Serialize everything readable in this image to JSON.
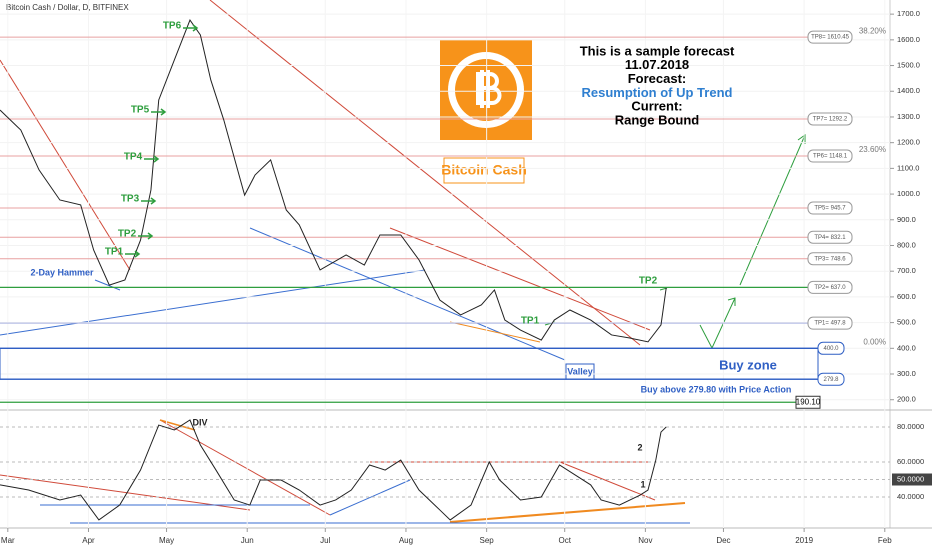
{
  "chart_data": [
    {
      "type": "line",
      "title": "Bitcoin Cash / Dollar, D, BITFINEX",
      "xlim": [
        -3,
        339
      ],
      "xticks": [
        {
          "value": 0,
          "label": "Mar"
        },
        {
          "value": 31,
          "label": "Apr"
        },
        {
          "value": 61,
          "label": "May"
        },
        {
          "value": 92,
          "label": "Jun"
        },
        {
          "value": 122,
          "label": "Jul"
        },
        {
          "value": 153,
          "label": "Aug"
        },
        {
          "value": 184,
          "label": "Sep"
        },
        {
          "value": 214,
          "label": "Oct"
        },
        {
          "value": 245,
          "label": "Nov"
        },
        {
          "value": 275,
          "label": "Dec"
        },
        {
          "value": 306,
          "label": "2019"
        },
        {
          "value": 337,
          "label": "Feb"
        }
      ],
      "ylim": [
        160,
        1755
      ],
      "yticks": [
        {
          "value": 200,
          "label": "200.0"
        },
        {
          "value": 300,
          "label": "300.0"
        },
        {
          "value": 400,
          "label": "400.0"
        },
        {
          "value": 500,
          "label": "500.0"
        },
        {
          "value": 600,
          "label": "600.0"
        },
        {
          "value": 700,
          "label": "700.0"
        },
        {
          "value": 800,
          "label": "800.0"
        },
        {
          "value": 900,
          "label": "900.0"
        },
        {
          "value": 1000,
          "label": "1000.0"
        },
        {
          "value": 1100,
          "label": "1100.0"
        },
        {
          "value": 1200,
          "label": "1200.0"
        },
        {
          "value": 1300,
          "label": "1300.0"
        },
        {
          "value": 1400,
          "label": "1400.0"
        },
        {
          "value": 1500,
          "label": "1500.0"
        },
        {
          "value": 1600,
          "label": "1600.0"
        },
        {
          "value": 1700,
          "label": "1700.0"
        }
      ],
      "x": [
        -3,
        5,
        12,
        20,
        28,
        33,
        39,
        45,
        51,
        55,
        58,
        64,
        70,
        74,
        78,
        83,
        91,
        95,
        101,
        107,
        112,
        120,
        130,
        137,
        143,
        151,
        158,
        166,
        174,
        182,
        187,
        191,
        197,
        205,
        210,
        216,
        224,
        232,
        239,
        246,
        251,
        253
      ],
      "series": [
        {
          "color": "#222222",
          "values": [
            1327,
            1249,
            1094,
            977,
            958,
            782,
            646,
            666,
            821,
            1016,
            1366,
            1522,
            1677,
            1619,
            1444,
            1288,
            996,
            1074,
            1133,
            938,
            880,
            705,
            763,
            724,
            841,
            841,
            744,
            588,
            530,
            569,
            627,
            510,
            471,
            432,
            510,
            549,
            510,
            452,
            440,
            425,
            491,
            635
          ]
        }
      ],
      "levels": [
        {
          "label": "TP8= 1610.45",
          "value": 1610.45,
          "color": "#e8a0a0"
        },
        {
          "label": "TP7= 1292.2",
          "value": 1292.2,
          "color": "#e8a0a0"
        },
        {
          "label": "TP6= 1148.1",
          "value": 1148.1,
          "color": "#e8a0a0"
        },
        {
          "label": "TP5= 945.7",
          "value": 945.7,
          "color": "#e8a0a0"
        },
        {
          "label": "TP4= 832.1",
          "value": 832.1,
          "color": "#e8a0a0"
        },
        {
          "label": "TP3= 748.6",
          "value": 748.6,
          "color": "#e8a0a0"
        },
        {
          "label": "TP2= 637.0",
          "value": 637.0,
          "color": "#2e9e3e"
        },
        {
          "label": "TP1= 497.8",
          "value": 497.8,
          "color": "#a8b0e0"
        },
        {
          "label": "400.0",
          "value": 400.0,
          "color": "#2f5fc4"
        },
        {
          "label": "279.8",
          "value": 279.8,
          "color": "#2f5fc4"
        },
        {
          "label": "190.10",
          "value": 190.1,
          "color": "#2e9e3e"
        }
      ],
      "fib_levels": [
        {
          "label": "38.20%",
          "value": 1610.45
        },
        {
          "label": "23.60%",
          "value": 1148.1
        },
        {
          "label": "0.00%",
          "value": 400.0
        }
      ],
      "annotations": [
        "TP6",
        "TP5",
        "TP4",
        "TP3",
        "TP2",
        "TP1",
        "2-Day Hammer",
        "TP1",
        "TP2",
        "Valley",
        "Buy zone",
        "Buy above 279.80 with Price Action"
      ],
      "brand": "Bitcoin Cash",
      "forecast": [
        "This is a sample forecast",
        "11.07.2018",
        "Forecast:",
        "Resumption of Up Trend",
        "Current:",
        "Range Bound"
      ]
    },
    {
      "type": "line",
      "ylim": [
        24,
        88
      ],
      "yticks": [
        {
          "value": 40,
          "label": "40.0000"
        },
        {
          "value": 50,
          "label": "50.0000"
        },
        {
          "value": 60,
          "label": "60.0000"
        },
        {
          "value": 80,
          "label": "80.0000"
        }
      ],
      "x": [
        -3,
        8,
        20,
        28,
        35,
        43,
        51,
        58,
        64,
        70,
        74,
        80,
        87,
        93,
        97,
        105,
        112,
        120,
        126,
        132,
        139,
        145,
        151,
        158,
        166,
        170,
        178,
        185,
        189,
        197,
        205,
        212,
        218,
        224,
        228,
        235,
        243,
        246,
        249,
        251,
        253
      ],
      "series": [
        {
          "color": "#222222",
          "values": [
            46.9,
            44,
            38.3,
            41.1,
            26.9,
            35.4,
            55.4,
            81.1,
            78.3,
            84,
            69.7,
            55.4,
            38.3,
            35.4,
            49.7,
            49.7,
            44,
            35.4,
            38.3,
            44,
            58.3,
            55.4,
            61.1,
            44,
            32.6,
            26.9,
            35.4,
            60,
            49.7,
            38.3,
            40,
            58.3,
            52.6,
            46.9,
            38.3,
            35.4,
            41.1,
            44,
            61.1,
            77.1,
            80
          ]
        }
      ],
      "annotations": [
        "DIV",
        "2",
        "1"
      ]
    }
  ]
}
